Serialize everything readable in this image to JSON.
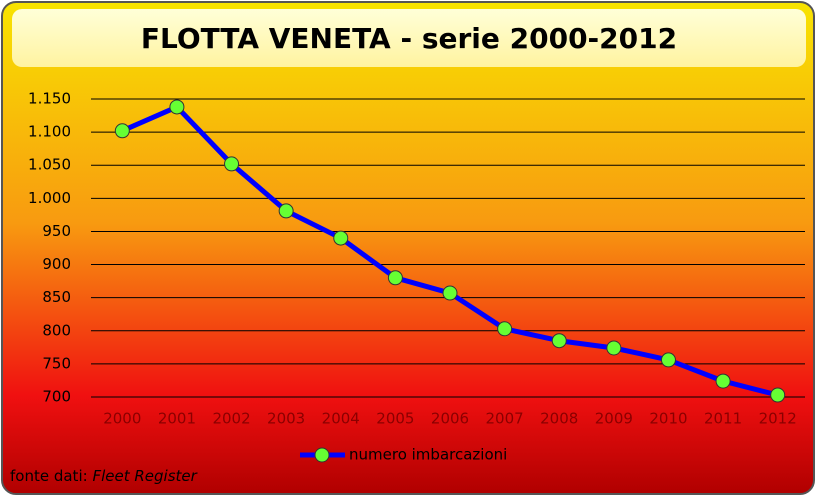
{
  "chart_data": {
    "type": "line",
    "title": "FLOTTA VENETA - serie 2000-2012",
    "categories": [
      "2000",
      "2001",
      "2002",
      "2003",
      "2004",
      "2005",
      "2006",
      "2007",
      "2008",
      "2009",
      "2010",
      "2011",
      "2012"
    ],
    "series": [
      {
        "name": "numero imbarcazioni",
        "color": "#0000ff",
        "marker_color": "#66ff33",
        "values": [
          1102,
          1138,
          1052,
          981,
          940,
          880,
          857,
          803,
          785,
          774,
          756,
          724,
          703
        ]
      }
    ],
    "ylim": [
      700,
      1150
    ],
    "yticks": [
      700,
      750,
      800,
      850,
      900,
      950,
      {
        "value": 1000,
        "label": "1.000"
      },
      {
        "value": 1050,
        "label": "1.050"
      },
      {
        "value": 1100,
        "label": "1.100"
      },
      {
        "value": 1150,
        "label": "1.150"
      }
    ],
    "grid": true,
    "legend": "bottom",
    "source_label": "fonte dati:",
    "source_name": "Fleet Register"
  }
}
